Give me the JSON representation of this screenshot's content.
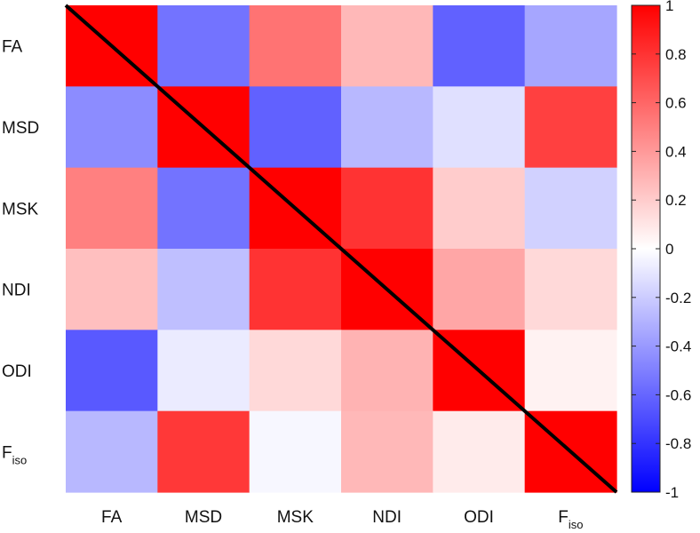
{
  "chart_data": {
    "type": "heatmap",
    "title": "",
    "labels": [
      {
        "base": "FA",
        "sub": ""
      },
      {
        "base": "MSD",
        "sub": ""
      },
      {
        "base": "MSK",
        "sub": ""
      },
      {
        "base": "NDI",
        "sub": ""
      },
      {
        "base": "ODI",
        "sub": ""
      },
      {
        "base": "F",
        "sub": "iso"
      }
    ],
    "matrix": [
      [
        1.0,
        -0.55,
        0.55,
        0.28,
        -0.62,
        -0.35
      ],
      [
        -0.45,
        1.0,
        -0.62,
        -0.28,
        -0.12,
        0.75
      ],
      [
        0.5,
        -0.55,
        1.0,
        0.8,
        0.2,
        -0.18
      ],
      [
        0.25,
        -0.25,
        0.8,
        1.0,
        0.35,
        0.15
      ],
      [
        -0.65,
        -0.08,
        0.15,
        0.3,
        1.0,
        0.05
      ],
      [
        -0.28,
        0.78,
        -0.03,
        0.28,
        0.08,
        1.0
      ]
    ],
    "clim": [
      -1,
      1
    ],
    "colorbar_ticks": [
      "1",
      "0.8",
      "0.6",
      "0.4",
      "0.2",
      "0",
      "-0.2",
      "-0.4",
      "-0.6",
      "-0.8",
      "-1"
    ],
    "colormap": {
      "low": "#0000ff",
      "mid": "#ffffff",
      "high": "#ff0000"
    },
    "diagonal_line_color": "#000000"
  }
}
